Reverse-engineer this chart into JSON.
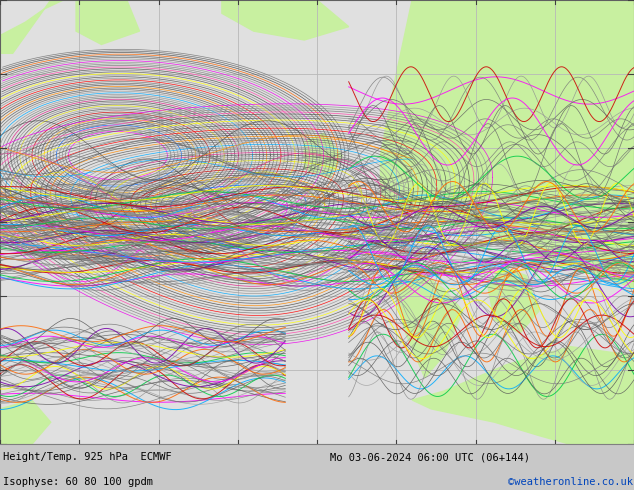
{
  "title_bottom": "Height/Temp. 925 hPa  ECMWF",
  "datetime_str": "Mo 03-06-2024 06:00 UTC (06+144)",
  "isophyse_str": "Isophyse: 60 80 100 gpdm",
  "copyright_str": "©weatheronline.co.uk",
  "bg_land_color": "#c8f0a0",
  "bg_sea_color": "#e0e0e0",
  "grid_color": "#b8b8b8",
  "map_border_color": "#606060",
  "figsize": [
    6.34,
    4.9
  ],
  "dpi": 100,
  "bottom_bar_color": "#c8c8c8",
  "text_color_main": "#000000",
  "text_color_copyright": "#0044bb",
  "num_grid_cols": 8,
  "num_grid_rows": 6
}
